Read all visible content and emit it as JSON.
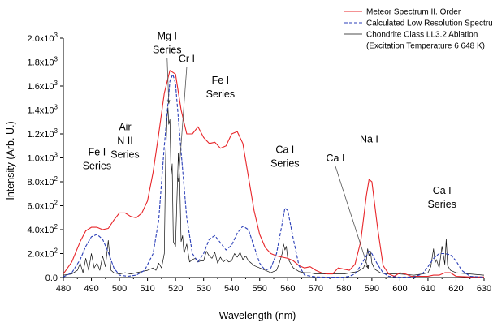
{
  "chart_data": {
    "type": "line",
    "xlabel": "Wavelength (nm)",
    "ylabel": "Intensity (Arb. U.)",
    "xlim": [
      480,
      630
    ],
    "ylim": [
      0,
      2000
    ],
    "x_ticks": [
      480,
      490,
      500,
      510,
      520,
      530,
      540,
      550,
      560,
      570,
      580,
      590,
      600,
      610,
      620,
      630
    ],
    "y_ticks": [
      {
        "value": 0,
        "base": "0.0",
        "exp": ""
      },
      {
        "value": 200,
        "base": "2.0x10",
        "exp": "2"
      },
      {
        "value": 400,
        "base": "4.0x10",
        "exp": "2"
      },
      {
        "value": 600,
        "base": "6.0x10",
        "exp": "2"
      },
      {
        "value": 800,
        "base": "8.0x10",
        "exp": "2"
      },
      {
        "value": 1000,
        "base": "1.0x10",
        "exp": "3"
      },
      {
        "value": 1200,
        "base": "1.2x10",
        "exp": "3"
      },
      {
        "value": 1400,
        "base": "1.4x10",
        "exp": "3"
      },
      {
        "value": 1600,
        "base": "1.6x10",
        "exp": "3"
      },
      {
        "value": 1800,
        "base": "1.8x10",
        "exp": "3"
      },
      {
        "value": 2000,
        "base": "2.0x10",
        "exp": "3"
      }
    ],
    "legend_position": "top-right",
    "series": [
      {
        "name": "Meteor Spectrum II. Order",
        "color": "#e8262a",
        "style": "solid",
        "x": [
          480,
          483,
          486,
          488,
          490,
          492,
          494,
          496,
          498,
          500,
          502,
          504,
          506,
          508,
          510,
          512,
          514,
          516,
          518,
          520,
          522,
          524,
          526,
          528,
          530,
          532,
          534,
          536,
          538,
          540,
          542,
          544,
          546,
          548,
          550,
          552,
          554,
          556,
          558,
          560,
          562,
          564,
          566,
          568,
          570,
          572,
          574,
          576,
          578,
          580,
          582,
          584,
          586,
          588,
          589,
          590,
          592,
          594,
          596,
          598,
          600,
          602,
          604,
          606,
          608,
          610,
          612,
          614,
          616,
          618,
          620,
          625,
          630
        ],
        "y": [
          30,
          130,
          300,
          390,
          420,
          420,
          400,
          410,
          480,
          540,
          540,
          510,
          500,
          540,
          640,
          880,
          1200,
          1540,
          1730,
          1700,
          1400,
          1200,
          1200,
          1260,
          1170,
          1120,
          1130,
          1080,
          1100,
          1200,
          1220,
          1120,
          840,
          560,
          360,
          250,
          200,
          180,
          170,
          160,
          140,
          100,
          80,
          90,
          60,
          40,
          30,
          30,
          80,
          70,
          60,
          110,
          300,
          680,
          820,
          800,
          420,
          100,
          30,
          10,
          40,
          30,
          10,
          10,
          10,
          10,
          20,
          20,
          40,
          40,
          10,
          5,
          5
        ]
      },
      {
        "name": "Calculated Low Resolution Spectrum",
        "color": "#2b3fb8",
        "style": "dashed",
        "x": [
          480,
          483,
          486,
          488,
          490,
          492,
          494,
          496,
          498,
          500,
          503,
          506,
          509,
          512,
          514,
          516,
          518,
          519,
          520,
          522,
          524,
          526,
          528,
          530,
          532,
          534,
          536,
          538,
          540,
          542,
          544,
          546,
          548,
          550,
          552,
          554,
          556,
          558,
          559,
          560,
          562,
          564,
          566,
          570,
          575,
          580,
          582,
          584,
          586,
          588,
          589,
          590,
          592,
          594,
          596,
          600,
          605,
          608,
          610,
          612,
          614,
          616,
          618,
          620,
          622,
          625,
          630
        ],
        "y": [
          5,
          40,
          150,
          260,
          340,
          360,
          320,
          210,
          80,
          20,
          10,
          20,
          60,
          200,
          480,
          1100,
          1640,
          1700,
          1620,
          1050,
          500,
          200,
          130,
          200,
          320,
          350,
          290,
          230,
          270,
          370,
          430,
          400,
          260,
          120,
          60,
          80,
          200,
          450,
          580,
          560,
          320,
          100,
          20,
          5,
          3,
          3,
          10,
          30,
          100,
          180,
          220,
          200,
          110,
          40,
          10,
          3,
          5,
          30,
          90,
          160,
          200,
          200,
          190,
          140,
          60,
          10,
          3
        ]
      },
      {
        "name": "Chondrite Class LL3.2 Ablation",
        "color": "#111111",
        "style": "solid-thin",
        "x": [
          480,
          483,
          485,
          486,
          487,
          488,
          489,
          490,
          491,
          492,
          493,
          494,
          495,
          496,
          497,
          498,
          500,
          502,
          504,
          506,
          508,
          510,
          512,
          513,
          514,
          515,
          516,
          516.5,
          517,
          517.3,
          517.6,
          518,
          518.4,
          518.8,
          519.2,
          519.6,
          520,
          520.5,
          521,
          521.5,
          522,
          522.5,
          523,
          524,
          525,
          526,
          527,
          528,
          529,
          530,
          531,
          532,
          533,
          534,
          535,
          536,
          537,
          538,
          539,
          540,
          541,
          542,
          543,
          544,
          545,
          546,
          547,
          548,
          550,
          552,
          554,
          556,
          557,
          558,
          558.5,
          559,
          559.5,
          560,
          561,
          562,
          564,
          566,
          568,
          570,
          575,
          580,
          585,
          587,
          588,
          588.5,
          589,
          589.5,
          590,
          591,
          593,
          595,
          600,
          605,
          608,
          610,
          611,
          612,
          612.5,
          613,
          614,
          615,
          616,
          616.5,
          617,
          618,
          620,
          625,
          630
        ],
        "y": [
          20,
          30,
          60,
          120,
          40,
          160,
          60,
          200,
          80,
          120,
          60,
          180,
          90,
          310,
          60,
          40,
          30,
          40,
          30,
          40,
          50,
          60,
          80,
          60,
          120,
          80,
          200,
          1020,
          1350,
          1420,
          1280,
          1320,
          850,
          950,
          300,
          280,
          260,
          660,
          1040,
          800,
          300,
          350,
          200,
          280,
          130,
          150,
          160,
          130,
          140,
          140,
          220,
          180,
          160,
          210,
          120,
          170,
          130,
          150,
          130,
          140,
          200,
          170,
          210,
          150,
          180,
          140,
          120,
          100,
          80,
          60,
          40,
          60,
          120,
          200,
          280,
          230,
          260,
          160,
          120,
          80,
          50,
          40,
          40,
          30,
          30,
          30,
          50,
          80,
          140,
          240,
          180,
          220,
          120,
          70,
          40,
          30,
          30,
          20,
          30,
          40,
          90,
          240,
          120,
          150,
          80,
          260,
          110,
          320,
          100,
          60,
          40,
          30,
          20
        ]
      }
    ],
    "legend_extra": "(Excitation Temperature 6 648 K)",
    "annotations": [
      {
        "lines": [
          "Mg I",
          "Series"
        ],
        "x": 517,
        "y": 1990,
        "arrow_to": [
          517.6,
          1450
        ]
      },
      {
        "lines": [
          "Cr I"
        ],
        "x": 524,
        "y": 1800,
        "arrow_to": [
          521,
          800
        ]
      },
      {
        "lines": [
          "Fe I",
          "Series"
        ],
        "x": 536,
        "y": 1620,
        "arrow_to": null
      },
      {
        "lines": [
          "Air",
          "N II",
          "Series"
        ],
        "x": 502,
        "y": 1230,
        "arrow_to": null
      },
      {
        "lines": [
          "Fe I",
          "Series"
        ],
        "x": 492,
        "y": 1020,
        "arrow_to": null
      },
      {
        "lines": [
          "Ca I",
          "Series"
        ],
        "x": 559,
        "y": 1040,
        "arrow_to": null
      },
      {
        "lines": [
          "Ca I"
        ],
        "x": 577,
        "y": 970,
        "arrow_to": [
          588.8,
          70
        ]
      },
      {
        "lines": [
          "Na I"
        ],
        "x": 589,
        "y": 1130,
        "arrow_to": null
      },
      {
        "lines": [
          "Ca I",
          "Series"
        ],
        "x": 615,
        "y": 700,
        "arrow_to": null
      }
    ]
  }
}
